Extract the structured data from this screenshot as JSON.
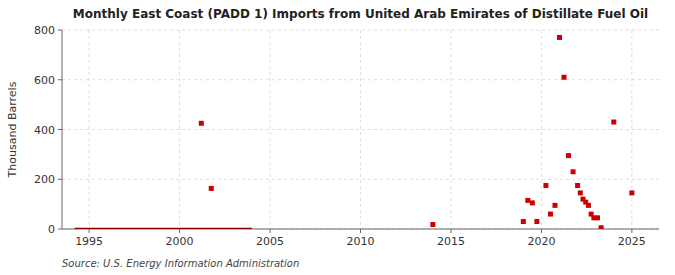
{
  "chart_data": {
    "type": "scatter",
    "title": "Monthly East Coast (PADD 1) Imports from United Arab Emirates of Distillate Fuel Oil",
    "y_label": "Thousand Barrels",
    "source": "Source: U.S. Energy Information Administration",
    "xlim": [
      1993.5,
      2026.5
    ],
    "ylim": [
      0,
      800
    ],
    "xticks": [
      1995,
      2000,
      2005,
      2010,
      2015,
      2020,
      2025
    ],
    "yticks": [
      0,
      200,
      400,
      600,
      800
    ],
    "grid": true,
    "series": [
      {
        "type": "line",
        "color": "#8b0000",
        "x": [
          1994.2,
          2004.0
        ],
        "values": [
          1,
          1
        ]
      },
      {
        "type": "scatter",
        "color": "#cc0000",
        "marker": "square",
        "x": [
          2001.2,
          2001.75,
          2014.0,
          2019.0,
          2019.25,
          2019.5,
          2019.75,
          2020.25,
          2020.5,
          2020.75,
          2021.0,
          2021.25,
          2021.5,
          2021.75,
          2022.0,
          2022.15,
          2022.3,
          2022.45,
          2022.6,
          2022.75,
          2022.9,
          2023.1,
          2023.3,
          2024.0,
          2025.0
        ],
        "values": [
          425,
          163,
          18,
          30,
          115,
          105,
          30,
          175,
          60,
          95,
          770,
          610,
          295,
          230,
          175,
          145,
          120,
          108,
          95,
          60,
          45,
          45,
          5,
          430,
          145
        ]
      }
    ]
  }
}
